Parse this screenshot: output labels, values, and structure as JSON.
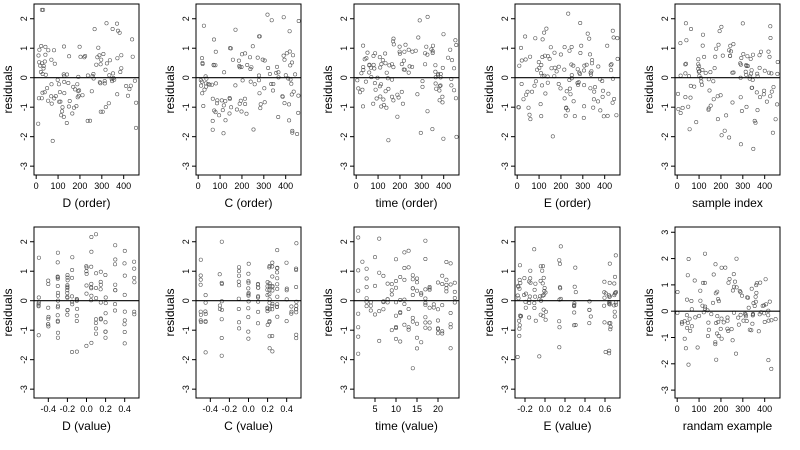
{
  "chart_data": [
    {
      "panel": "d-order",
      "type": "scatter",
      "xlabel": "D (order)",
      "ylabel": "residuals",
      "xlim": [
        -10,
        470
      ],
      "ylim": [
        -3.3,
        2.5
      ],
      "xticks": [
        0,
        100,
        200,
        300,
        400
      ],
      "xtick_labels": [
        "0",
        "100",
        "200",
        "300",
        "400"
      ],
      "yticks": [
        -3,
        -2,
        -1,
        0,
        1,
        2
      ],
      "ytick_labels": [
        "-3",
        "-2",
        "-1",
        "0",
        "1",
        "2"
      ],
      "reference_line_y": 0,
      "x_kind": "index",
      "n_points": 120,
      "seed": 11
    },
    {
      "panel": "c-order",
      "type": "scatter",
      "xlabel": "C (order)",
      "ylabel": "residuals",
      "xlim": [
        -10,
        470
      ],
      "ylim": [
        -3.3,
        2.5
      ],
      "xticks": [
        0,
        100,
        200,
        300,
        400
      ],
      "xtick_labels": [
        "0",
        "100",
        "200",
        "300",
        "400"
      ],
      "yticks": [
        -3,
        -2,
        -1,
        0,
        1,
        2
      ],
      "ytick_labels": [
        "-3",
        "-2",
        "-1",
        "0",
        "1",
        "2"
      ],
      "reference_line_y": 0,
      "x_kind": "index",
      "n_points": 120,
      "seed": 23
    },
    {
      "panel": "time-order",
      "type": "scatter",
      "xlabel": "time (order)",
      "ylabel": "residuals",
      "xlim": [
        -10,
        470
      ],
      "ylim": [
        -3.3,
        2.5
      ],
      "xticks": [
        0,
        100,
        200,
        300,
        400
      ],
      "xtick_labels": [
        "0",
        "100",
        "200",
        "300",
        "400"
      ],
      "yticks": [
        -3,
        -2,
        -1,
        0,
        1,
        2
      ],
      "ytick_labels": [
        "-3",
        "-2",
        "-1",
        "0",
        "1",
        "2"
      ],
      "reference_line_y": 0,
      "x_kind": "index",
      "n_points": 120,
      "seed": 37
    },
    {
      "panel": "e-order",
      "type": "scatter",
      "xlabel": "E (order)",
      "ylabel": "residuals",
      "xlim": [
        -10,
        470
      ],
      "ylim": [
        -3.3,
        2.5
      ],
      "xticks": [
        0,
        100,
        200,
        300,
        400
      ],
      "xtick_labels": [
        "0",
        "100",
        "200",
        "300",
        "400"
      ],
      "yticks": [
        -3,
        -2,
        -1,
        0,
        1,
        2
      ],
      "ytick_labels": [
        "-3",
        "-2",
        "-1",
        "0",
        "1",
        "2"
      ],
      "reference_line_y": 0,
      "x_kind": "index",
      "n_points": 120,
      "seed": 41
    },
    {
      "panel": "sample-index",
      "type": "scatter",
      "xlabel": "sample index",
      "ylabel": "residuals",
      "xlim": [
        -10,
        470
      ],
      "ylim": [
        -3.3,
        2.5
      ],
      "xticks": [
        0,
        100,
        200,
        300,
        400
      ],
      "xtick_labels": [
        "0",
        "100",
        "200",
        "300",
        "400"
      ],
      "yticks": [
        -3,
        -2,
        -1,
        0,
        1,
        2
      ],
      "ytick_labels": [
        "-3",
        "-2",
        "-1",
        "0",
        "1",
        "2"
      ],
      "reference_line_y": 0,
      "x_kind": "index",
      "n_points": 120,
      "seed": 53
    },
    {
      "panel": "d-value",
      "type": "scatter",
      "xlabel": "D (value)",
      "ylabel": "residuals",
      "xlim": [
        -0.55,
        0.55
      ],
      "ylim": [
        -3.3,
        2.5
      ],
      "xticks": [
        -0.4,
        -0.2,
        0.0,
        0.2,
        0.4
      ],
      "xtick_labels": [
        "-0.4",
        "-0.2",
        "0.0",
        "0.2",
        "0.4"
      ],
      "yticks": [
        -3,
        -2,
        -1,
        0,
        1,
        2
      ],
      "ytick_labels": [
        "-3",
        "-2",
        "-1",
        "0",
        "1",
        "2"
      ],
      "reference_line_y": 0,
      "x_kind": "discrete",
      "x_levels": [
        -0.5,
        -0.4,
        -0.3,
        -0.2,
        -0.15,
        -0.1,
        0.0,
        0.05,
        0.1,
        0.15,
        0.2,
        0.3,
        0.4,
        0.5
      ],
      "n_points": 120,
      "seed": 67
    },
    {
      "panel": "c-value",
      "type": "scatter",
      "xlabel": "C (value)",
      "ylabel": "residuals",
      "xlim": [
        -0.55,
        0.55
      ],
      "ylim": [
        -3.3,
        2.5
      ],
      "xticks": [
        -0.4,
        -0.2,
        0.0,
        0.2,
        0.4
      ],
      "xtick_labels": [
        "-0.4",
        "-0.2",
        "0.0",
        "0.2",
        "0.4"
      ],
      "yticks": [
        -3,
        -2,
        -1,
        0,
        1,
        2
      ],
      "ytick_labels": [
        "-3",
        "-2",
        "-1",
        "0",
        "1",
        "2"
      ],
      "reference_line_y": 0,
      "x_kind": "discrete",
      "x_levels": [
        -0.5,
        -0.45,
        -0.3,
        -0.28,
        -0.1,
        0.0,
        0.1,
        0.2,
        0.22,
        0.25,
        0.3,
        0.4,
        0.45,
        0.5
      ],
      "n_points": 120,
      "seed": 71
    },
    {
      "panel": "time-value",
      "type": "scatter",
      "xlabel": "time (value)",
      "ylabel": "residuals",
      "xlim": [
        0,
        25
      ],
      "ylim": [
        -3.3,
        2.5
      ],
      "xticks": [
        5,
        10,
        15,
        20
      ],
      "xtick_labels": [
        "5",
        "10",
        "15",
        "20"
      ],
      "yticks": [
        -3,
        -2,
        -1,
        0,
        1,
        2
      ],
      "ytick_labels": [
        "-3",
        "-2",
        "-1",
        "0",
        "1",
        "2"
      ],
      "reference_line_y": 0,
      "x_kind": "discrete",
      "x_levels": [
        1,
        2,
        3,
        4,
        5,
        6,
        7,
        8,
        9,
        10,
        11,
        12,
        13,
        14,
        15,
        16,
        17,
        18,
        19,
        20,
        21,
        22,
        23,
        24
      ],
      "n_points": 120,
      "seed": 83
    },
    {
      "panel": "e-value",
      "type": "scatter",
      "xlabel": "E (value)",
      "ylabel": "residuals",
      "xlim": [
        -0.3,
        0.75
      ],
      "ylim": [
        -3.3,
        2.5
      ],
      "xticks": [
        -0.2,
        0.0,
        0.2,
        0.4,
        0.6
      ],
      "xtick_labels": [
        "-0.2",
        "0.0",
        "0.2",
        "0.4",
        "0.6"
      ],
      "yticks": [
        -3,
        -2,
        -1,
        0,
        1,
        2
      ],
      "ytick_labels": [
        "-3",
        "-2",
        "-1",
        "0",
        "1",
        "2"
      ],
      "reference_line_y": 0,
      "x_kind": "clustered",
      "x_levels": [
        -0.28,
        -0.26,
        -0.25,
        -0.2,
        -0.15,
        -0.1,
        -0.05,
        -0.02,
        0.0,
        0.15,
        0.3,
        0.45,
        0.6,
        0.65,
        0.7
      ],
      "n_points": 120,
      "seed": 97
    },
    {
      "panel": "randam-example",
      "type": "scatter",
      "xlabel": "randam example",
      "ylabel": "residuals",
      "xlim": [
        -10,
        470
      ],
      "ylim": [
        -3.3,
        3.2
      ],
      "xticks": [
        0,
        100,
        200,
        300,
        400
      ],
      "xtick_labels": [
        "0",
        "100",
        "200",
        "300",
        "400"
      ],
      "yticks": [
        -3,
        -2,
        -1,
        0,
        1,
        2,
        3
      ],
      "ytick_labels": [
        "-3",
        "-2",
        "-1",
        "0",
        "1",
        "2",
        "3"
      ],
      "reference_line_y": 0,
      "x_kind": "index",
      "n_points": 120,
      "seed": 101
    }
  ]
}
